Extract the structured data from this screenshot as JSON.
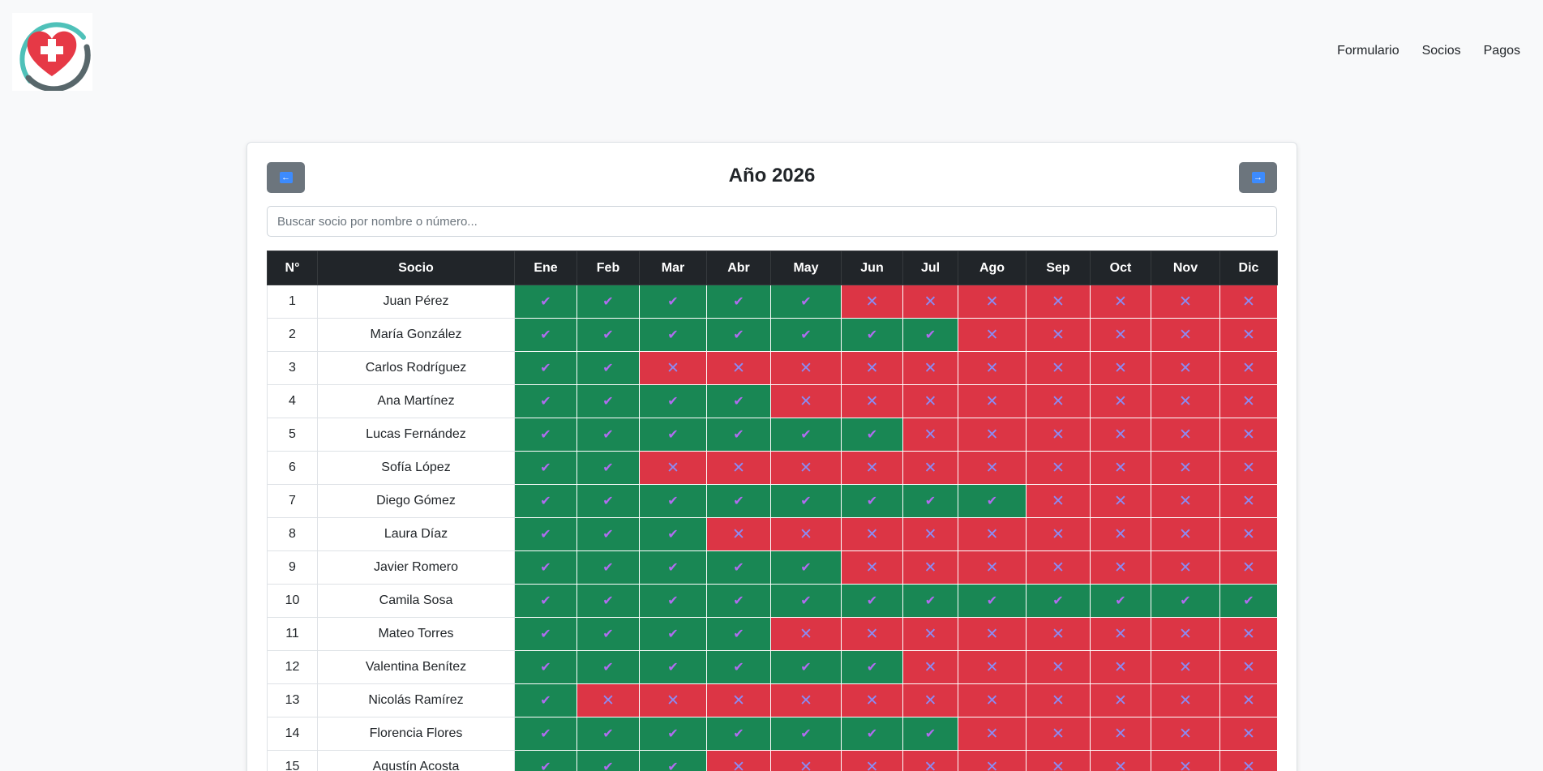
{
  "nav": {
    "links": [
      "Formulario",
      "Socios",
      "Pagos"
    ]
  },
  "page": {
    "year_title": "Año 2026"
  },
  "search": {
    "placeholder": "Buscar socio por nombre o número..."
  },
  "colors": {
    "paid": "#198754",
    "unpaid": "#dc3545",
    "header": "#212529",
    "nav_button": "#6c757d"
  },
  "icons": {
    "prev": "arrow-left-icon",
    "next": "arrow-right-icon",
    "paid": "check-icon",
    "unpaid": "cross-icon"
  },
  "table": {
    "headers": [
      "N°",
      "Socio",
      "Ene",
      "Feb",
      "Mar",
      "Abr",
      "May",
      "Jun",
      "Jul",
      "Ago",
      "Sep",
      "Oct",
      "Nov",
      "Dic"
    ],
    "rows": [
      {
        "num": "1",
        "name": "Juan Pérez",
        "paid_months": 5
      },
      {
        "num": "2",
        "name": "María González",
        "paid_months": 7
      },
      {
        "num": "3",
        "name": "Carlos Rodríguez",
        "paid_months": 2
      },
      {
        "num": "4",
        "name": "Ana Martínez",
        "paid_months": 4
      },
      {
        "num": "5",
        "name": "Lucas Fernández",
        "paid_months": 6
      },
      {
        "num": "6",
        "name": "Sofía López",
        "paid_months": 2
      },
      {
        "num": "7",
        "name": "Diego Gómez",
        "paid_months": 8
      },
      {
        "num": "8",
        "name": "Laura Díaz",
        "paid_months": 3
      },
      {
        "num": "9",
        "name": "Javier Romero",
        "paid_months": 5
      },
      {
        "num": "10",
        "name": "Camila Sosa",
        "paid_months": 12
      },
      {
        "num": "11",
        "name": "Mateo Torres",
        "paid_months": 4
      },
      {
        "num": "12",
        "name": "Valentina Benítez",
        "paid_months": 6
      },
      {
        "num": "13",
        "name": "Nicolás Ramírez",
        "paid_months": 1
      },
      {
        "num": "14",
        "name": "Florencia Flores",
        "paid_months": 7
      },
      {
        "num": "15",
        "name": "Agustín Acosta",
        "paid_months": 3
      }
    ]
  }
}
